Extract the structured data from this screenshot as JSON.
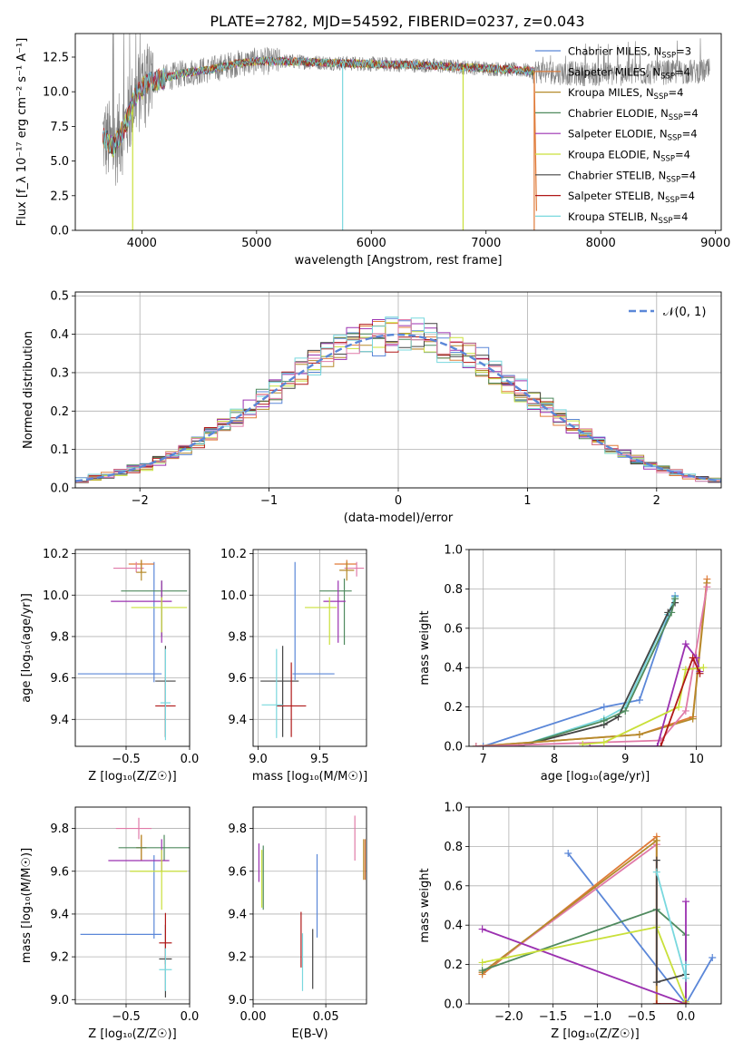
{
  "figure_title": "PLATE=2782, MJD=54592, FIBERID=0237, z=0.043",
  "colors": {
    "Chabrier MILES": "#5b87d8",
    "Salpeter MILES": "#e07b39",
    "Kroupa MILES": "#b58a2b",
    "Chabrier ELODIE": "#4f8a5e",
    "Salpeter ELODIE": "#9b30b0",
    "Kroupa ELODIE": "#c9e03a",
    "Chabrier STELIB": "#444444",
    "Salpeter STELIB": "#b01818",
    "Kroupa STELIB": "#79d8de",
    "extra_pink": "#e07aa8",
    "data": "#808080",
    "normal": "#5b87d8"
  },
  "chart_data": [
    {
      "id": "spectrum",
      "type": "line",
      "title": "PLATE=2782, MJD=54592, FIBERID=0237, z=0.043",
      "xlabel": "wavelength [Angstrom, rest frame]",
      "ylabel": "Flux [f_λ 10⁻¹⁷ erg cm⁻² s⁻¹ A⁻¹]",
      "xlim": [
        3420,
        9050
      ],
      "ylim": [
        0,
        14.2
      ],
      "xticks": [
        4000,
        5000,
        6000,
        7000,
        8000,
        9000
      ],
      "yticks": [
        0.0,
        2.5,
        5.0,
        7.5,
        10.0,
        12.5
      ],
      "grid": false,
      "legend_position": "top-right",
      "series": [
        {
          "name": "Chabrier MILES",
          "label": "Chabrier MILES, N",
          "sub": "SSP",
          "nval": "=3"
        },
        {
          "name": "Salpeter MILES",
          "label": "Salpeter MILES, N",
          "sub": "SSP",
          "nval": "=4"
        },
        {
          "name": "Kroupa MILES",
          "label": "Kroupa MILES, N",
          "sub": "SSP",
          "nval": "=4"
        },
        {
          "name": "Chabrier ELODIE",
          "label": "Chabrier ELODIE, N",
          "sub": "SSP",
          "nval": "=4"
        },
        {
          "name": "Salpeter ELODIE",
          "label": "Salpeter ELODIE, N",
          "sub": "SSP",
          "nval": "=4"
        },
        {
          "name": "Kroupa ELODIE",
          "label": "Kroupa ELODIE, N",
          "sub": "SSP",
          "nval": "=4"
        },
        {
          "name": "Chabrier STELIB",
          "label": "Chabrier STELIB, N",
          "sub": "SSP",
          "nval": "=4"
        },
        {
          "name": "Salpeter STELIB",
          "label": "Salpeter STELIB, N",
          "sub": "SSP",
          "nval": "=4"
        },
        {
          "name": "Kroupa STELIB",
          "label": "Kroupa STELIB, N",
          "sub": "SSP",
          "nval": "=4"
        }
      ],
      "trend": [
        [
          3660,
          6.8
        ],
        [
          3750,
          6.0
        ],
        [
          3850,
          7.4
        ],
        [
          3950,
          9.8
        ],
        [
          4050,
          10.6
        ],
        [
          4200,
          11.0
        ],
        [
          4400,
          11.4
        ],
        [
          4600,
          11.6
        ],
        [
          4800,
          12.0
        ],
        [
          5000,
          12.2
        ],
        [
          5300,
          12.2
        ],
        [
          5600,
          12.1
        ],
        [
          6000,
          12.0
        ],
        [
          6500,
          11.9
        ],
        [
          7000,
          11.7
        ],
        [
          7400,
          11.5
        ],
        [
          7800,
          11.3
        ],
        [
          8200,
          11.3
        ],
        [
          8600,
          11.4
        ],
        [
          8950,
          11.5
        ]
      ],
      "model_end": [
        [
          3660,
          6.8
        ],
        [
          7420,
          11.5
        ]
      ],
      "dropouts": [
        {
          "x": 3920,
          "y": 0.0
        },
        {
          "x": 5750,
          "y": 0.0
        },
        {
          "x": 6800,
          "y": 0.0
        },
        {
          "x": 7420,
          "y": 0.0
        }
      ]
    },
    {
      "id": "residuals",
      "type": "histogram",
      "xlabel": "(data-model)/error",
      "ylabel": "Normed distribution",
      "xlim": [
        -2.5,
        2.5
      ],
      "ylim": [
        0,
        0.51
      ],
      "xticks": [
        -2,
        -1,
        0,
        1,
        2
      ],
      "yticks": [
        0.0,
        0.1,
        0.2,
        0.3,
        0.4,
        0.5
      ],
      "grid": true,
      "legend_position": "top-right",
      "legend": "𝒩(0, 1)",
      "bin_width": 0.1,
      "series_colors": [
        "#5b87d8",
        "#e07b39",
        "#b58a2b",
        "#4f8a5e",
        "#9b30b0",
        "#c9e03a",
        "#444444",
        "#b01818",
        "#79d8de",
        "#e07aa8"
      ]
    },
    {
      "id": "age_vs_Z",
      "type": "errorbar",
      "xlabel": "Z [log₁₀(Z/Z☉)]",
      "ylabel": "age  [log₁₀(age/yr)]",
      "xlim": [
        -0.9,
        0.0
      ],
      "ylim": [
        9.27,
        10.22
      ],
      "xticks": [
        -0.5,
        0.0
      ],
      "yticks": [
        9.4,
        9.6,
        9.8,
        10.0,
        10.2
      ],
      "grid": true,
      "points": [
        {
          "c": "#5b87d8",
          "x": -0.28,
          "y": 9.62,
          "xerr": [
            0.6,
            0.06
          ],
          "yerr": [
            0.04,
            0.54
          ]
        },
        {
          "c": "#e07b39",
          "x": -0.38,
          "y": 10.15,
          "xerr": [
            0.1,
            0.1
          ],
          "yerr": [
            0.04,
            0.02
          ]
        },
        {
          "c": "#e07aa8",
          "x": -0.42,
          "y": 10.13,
          "xerr": [
            0.18,
            0.06
          ],
          "yerr": [
            0.02,
            0.03
          ]
        },
        {
          "c": "#b58a2b",
          "x": -0.38,
          "y": 10.11,
          "xerr": [
            0.04,
            0.04
          ],
          "yerr": [
            0.04,
            0.06
          ]
        },
        {
          "c": "#4f8a5e",
          "x": -0.22,
          "y": 10.02,
          "xerr": [
            0.32,
            0.2
          ],
          "yerr": [
            0.22,
            0.05
          ]
        },
        {
          "c": "#9b30b0",
          "x": -0.22,
          "y": 9.97,
          "xerr": [
            0.4,
            0.08
          ],
          "yerr": [
            0.2,
            0.1
          ]
        },
        {
          "c": "#c9e03a",
          "x": -0.22,
          "y": 9.94,
          "xerr": [
            0.24,
            0.2
          ],
          "yerr": [
            0.12,
            0.05
          ]
        },
        {
          "c": "#444444",
          "x": -0.19,
          "y": 9.585,
          "xerr": [
            0.08,
            0.08
          ],
          "yerr": [
            0.27,
            0.17
          ]
        },
        {
          "c": "#b01818",
          "x": -0.19,
          "y": 9.465,
          "xerr": [
            0.08,
            0.08
          ],
          "yerr": [
            0.15,
            0.13
          ]
        },
        {
          "c": "#79d8de",
          "x": -0.19,
          "y": 9.48,
          "xerr": [
            0.04,
            0.04
          ],
          "yerr": [
            0.18,
            0.26
          ]
        }
      ]
    },
    {
      "id": "age_vs_mass",
      "type": "errorbar",
      "xlabel": "mass [log₁₀(M/M☉)]",
      "ylabel": "",
      "xlim": [
        8.96,
        9.88
      ],
      "ylim": [
        9.27,
        10.22
      ],
      "xticks": [
        9.0,
        9.5
      ],
      "yticks": [
        9.4,
        9.6,
        9.8,
        10.0,
        10.2
      ],
      "grid": true,
      "points": [
        {
          "c": "#5b87d8",
          "x": 9.3,
          "y": 9.62,
          "xerr": [
            0.02,
            0.32
          ],
          "yerr": [
            0.03,
            0.54
          ]
        },
        {
          "c": "#e07b39",
          "x": 9.72,
          "y": 10.15,
          "xerr": [
            0.1,
            0.08
          ],
          "yerr": [
            0.03,
            0.02
          ]
        },
        {
          "c": "#e07aa8",
          "x": 9.8,
          "y": 10.13,
          "xerr": [
            0.1,
            0.06
          ],
          "yerr": [
            0.04,
            0.03
          ]
        },
        {
          "c": "#b58a2b",
          "x": 9.72,
          "y": 10.12,
          "xerr": [
            0.06,
            0.06
          ],
          "yerr": [
            0.05,
            0.04
          ]
        },
        {
          "c": "#4f8a5e",
          "x": 9.7,
          "y": 10.02,
          "xerr": [
            0.2,
            0.06
          ],
          "yerr": [
            0.26,
            0.06
          ]
        },
        {
          "c": "#9b30b0",
          "x": 9.65,
          "y": 9.97,
          "xerr": [
            0.12,
            0.06
          ],
          "yerr": [
            0.2,
            0.1
          ]
        },
        {
          "c": "#c9e03a",
          "x": 9.58,
          "y": 9.94,
          "xerr": [
            0.2,
            0.06
          ],
          "yerr": [
            0.18,
            0.05
          ]
        },
        {
          "c": "#444444",
          "x": 9.2,
          "y": 9.585,
          "xerr": [
            0.18,
            0.13
          ],
          "yerr": [
            0.27,
            0.17
          ]
        },
        {
          "c": "#b01818",
          "x": 9.27,
          "y": 9.465,
          "xerr": [
            0.12,
            0.12
          ],
          "yerr": [
            0.15,
            0.21
          ]
        },
        {
          "c": "#79d8de",
          "x": 9.15,
          "y": 9.47,
          "xerr": [
            0.12,
            0.05
          ],
          "yerr": [
            0.16,
            0.27
          ]
        }
      ]
    },
    {
      "id": "mass_weight_age",
      "type": "line",
      "xlabel": "age  [log₁₀(age/yr)]",
      "ylabel": "mass weight",
      "xlim": [
        6.8,
        10.35
      ],
      "ylim": [
        0,
        1.0
      ],
      "xticks": [
        7,
        8,
        9,
        10
      ],
      "yticks": [
        0.0,
        0.2,
        0.4,
        0.6,
        0.8,
        1.0
      ],
      "grid": true,
      "series": [
        {
          "c": "#5b87d8",
          "x": [
            7.0,
            8.7,
            9.2,
            9.7
          ],
          "y": [
            0.0,
            0.2,
            0.235,
            0.765
          ]
        },
        {
          "c": "#79d8de",
          "x": [
            7.5,
            8.7,
            9.0,
            9.6,
            9.7
          ],
          "y": [
            0.0,
            0.14,
            0.2,
            0.67,
            0.76
          ]
        },
        {
          "c": "#444444",
          "x": [
            7.5,
            8.7,
            8.9,
            9.6,
            9.7
          ],
          "y": [
            0.0,
            0.11,
            0.15,
            0.68,
            0.73
          ]
        },
        {
          "c": "#4f8a5e",
          "x": [
            7.5,
            8.7,
            9.0,
            9.65,
            9.7
          ],
          "y": [
            0.0,
            0.13,
            0.18,
            0.68,
            0.75
          ]
        },
        {
          "c": "#e07b39",
          "x": [
            6.9,
            9.2,
            9.95,
            10.15
          ],
          "y": [
            0.0,
            0.06,
            0.15,
            0.85
          ]
        },
        {
          "c": "#b58a2b",
          "x": [
            6.9,
            9.2,
            9.95,
            10.15
          ],
          "y": [
            0.0,
            0.06,
            0.14,
            0.83
          ]
        },
        {
          "c": "#e07aa8",
          "x": [
            6.9,
            9.5,
            9.85,
            10.15
          ],
          "y": [
            0.0,
            0.03,
            0.18,
            0.81
          ]
        },
        {
          "c": "#9b30b0",
          "x": [
            8.5,
            9.45,
            9.85,
            10.0,
            10.05
          ],
          "y": [
            0.0,
            0.0,
            0.52,
            0.45,
            0.38
          ]
        },
        {
          "c": "#c9e03a",
          "x": [
            8.4,
            8.7,
            9.75,
            9.85,
            10.1
          ],
          "y": [
            0.01,
            0.02,
            0.2,
            0.39,
            0.4
          ]
        },
        {
          "c": "#b01818",
          "x": [
            9.5,
            9.95,
            10.05
          ],
          "y": [
            0.0,
            0.45,
            0.37
          ]
        }
      ]
    },
    {
      "id": "mass_vs_Z",
      "type": "errorbar",
      "xlabel": "Z [log₁₀(Z/Z☉)]",
      "ylabel": "mass [log₁₀(M/M☉)]",
      "xlim": [
        -0.9,
        0.0
      ],
      "ylim": [
        8.98,
        9.9
      ],
      "xticks": [
        -0.5,
        0.0
      ],
      "yticks": [
        9.0,
        9.2,
        9.4,
        9.6,
        9.8
      ],
      "grid": true,
      "points": [
        {
          "c": "#5b87d8",
          "x": -0.28,
          "y": 9.305,
          "xerr": [
            0.58,
            0.06
          ],
          "yerr": [
            0.02,
            0.37
          ]
        },
        {
          "c": "#e07b39",
          "x": -0.38,
          "y": 9.71,
          "xerr": [
            0.04,
            0.04
          ],
          "yerr": [
            0.06,
            0.06
          ]
        },
        {
          "c": "#e07aa8",
          "x": -0.4,
          "y": 9.8,
          "xerr": [
            0.18,
            0.1
          ],
          "yerr": [
            0.05,
            0.05
          ]
        },
        {
          "c": "#b58a2b",
          "x": -0.38,
          "y": 9.71,
          "xerr": [
            0.04,
            0.04
          ],
          "yerr": [
            0.06,
            0.06
          ]
        },
        {
          "c": "#4f8a5e",
          "x": -0.2,
          "y": 9.71,
          "xerr": [
            0.36,
            0.2
          ],
          "yerr": [
            0.06,
            0.06
          ]
        },
        {
          "c": "#9b30b0",
          "x": -0.22,
          "y": 9.65,
          "xerr": [
            0.42,
            0.06
          ],
          "yerr": [
            0.05,
            0.1
          ]
        },
        {
          "c": "#c9e03a",
          "x": -0.22,
          "y": 9.6,
          "xerr": [
            0.25,
            0.2
          ],
          "yerr": [
            0.18,
            0.1
          ]
        },
        {
          "c": "#444444",
          "x": -0.19,
          "y": 9.19,
          "xerr": [
            0.05,
            0.05
          ],
          "yerr": [
            0.18,
            0.16
          ]
        },
        {
          "c": "#b01818",
          "x": -0.19,
          "y": 9.265,
          "xerr": [
            0.05,
            0.05
          ],
          "yerr": [
            0.1,
            0.14
          ]
        },
        {
          "c": "#79d8de",
          "x": -0.19,
          "y": 9.14,
          "xerr": [
            0.05,
            0.05
          ],
          "yerr": [
            0.1,
            0.1
          ]
        }
      ]
    },
    {
      "id": "mass_vs_ebv",
      "type": "errorbar",
      "xlabel": "E(B-V)",
      "ylabel": "",
      "xlim": [
        0.0,
        0.078
      ],
      "ylim": [
        8.98,
        9.9
      ],
      "xticks": [
        0.0,
        0.05
      ],
      "yticks": [
        9.0,
        9.2,
        9.4,
        9.6,
        9.8
      ],
      "grid": true,
      "vlines": [
        {
          "c": "#9b30b0",
          "x": 0.004,
          "y0": 9.55,
          "y1": 9.73
        },
        {
          "c": "#c9e03a",
          "x": 0.006,
          "y0": 9.43,
          "y1": 9.7
        },
        {
          "c": "#4f8a5e",
          "x": 0.007,
          "y0": 9.42,
          "y1": 9.72
        },
        {
          "c": "#b01818",
          "x": 0.033,
          "y0": 9.15,
          "y1": 9.41
        },
        {
          "c": "#79d8de",
          "x": 0.034,
          "y0": 9.04,
          "y1": 9.31
        },
        {
          "c": "#444444",
          "x": 0.041,
          "y0": 9.05,
          "y1": 9.33
        },
        {
          "c": "#5b87d8",
          "x": 0.044,
          "y0": 9.29,
          "y1": 9.68
        },
        {
          "c": "#e07aa8",
          "x": 0.07,
          "y0": 9.65,
          "y1": 9.86
        },
        {
          "c": "#b58a2b",
          "x": 0.076,
          "y0": 9.56,
          "y1": 9.75
        },
        {
          "c": "#e07b39",
          "x": 0.077,
          "y0": 9.56,
          "y1": 9.75
        }
      ]
    },
    {
      "id": "mass_weight_Z",
      "type": "line",
      "xlabel": "Z [log₁₀(Z/Z☉)]",
      "ylabel": "mass weight",
      "xlim": [
        -2.45,
        0.4
      ],
      "ylim": [
        0,
        1.0
      ],
      "xticks": [
        -2.0,
        -1.5,
        -1.0,
        -0.5,
        0.0
      ],
      "yticks": [
        0.0,
        0.2,
        0.4,
        0.6,
        0.8,
        1.0
      ],
      "grid": true,
      "series": [
        {
          "c": "#5b87d8",
          "x": [
            -1.33,
            0.0,
            0.3
          ],
          "y": [
            0.765,
            0.0,
            0.235
          ]
        },
        {
          "c": "#e07b39",
          "x": [
            -2.3,
            -0.33,
            -0.33
          ],
          "y": [
            0.15,
            0.85,
            0.0
          ]
        },
        {
          "c": "#e07aa8",
          "x": [
            -2.3,
            -0.33,
            -0.33
          ],
          "y": [
            0.16,
            0.81,
            0.0
          ]
        },
        {
          "c": "#b58a2b",
          "x": [
            -2.3,
            -0.33,
            -0.33
          ],
          "y": [
            0.16,
            0.83,
            0.0
          ]
        },
        {
          "c": "#4f8a5e",
          "x": [
            -2.3,
            -0.33,
            0.0,
            0.0
          ],
          "y": [
            0.17,
            0.48,
            0.35,
            0.0
          ]
        },
        {
          "c": "#9b30b0",
          "x": [
            -2.3,
            0.0,
            0.0
          ],
          "y": [
            0.38,
            0.0,
            0.52
          ]
        },
        {
          "c": "#c9e03a",
          "x": [
            -2.3,
            -0.33,
            0.0
          ],
          "y": [
            0.21,
            0.39,
            0.01
          ]
        },
        {
          "c": "#444444",
          "x": [
            -0.33,
            -0.33,
            0.0
          ],
          "y": [
            0.73,
            0.11,
            0.15
          ]
        },
        {
          "c": "#79d8de",
          "x": [
            -0.33,
            0.0,
            0.0
          ],
          "y": [
            0.67,
            0.13,
            0.2
          ]
        },
        {
          "c": "#b01818",
          "x": [
            -0.33,
            0.0
          ],
          "y": [
            0.0,
            0.0
          ]
        }
      ]
    }
  ]
}
